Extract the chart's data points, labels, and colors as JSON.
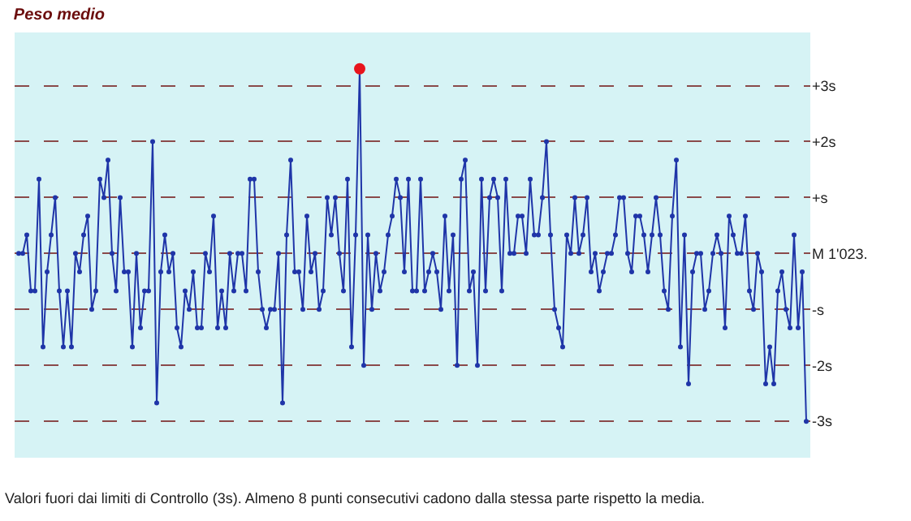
{
  "chart_data": {
    "type": "line",
    "title": "Peso medio",
    "annotations": [
      "Valori fuori dai limiti di Controllo (3s). Almeno 8 punti consecutivi cadono dalla stessa parte rispetto la media."
    ],
    "categories": [
      null,
      null,
      null,
      null,
      null,
      null,
      null,
      null,
      null,
      null,
      null,
      null,
      null,
      null,
      null,
      null,
      null,
      null,
      null,
      null,
      null,
      null,
      null,
      null,
      null,
      null,
      null,
      null,
      null,
      null,
      null,
      null,
      null,
      null,
      null,
      null,
      null,
      null,
      null,
      null,
      null,
      null,
      null,
      null,
      null,
      null,
      null,
      null,
      null,
      null,
      null,
      null,
      null,
      null,
      null,
      null,
      null,
      null,
      null,
      null,
      null,
      null,
      null,
      null,
      null,
      null,
      null,
      null,
      null,
      null,
      null,
      null,
      null,
      null,
      null,
      null,
      null,
      null,
      null,
      null,
      null,
      null,
      null,
      null,
      null,
      null,
      null,
      null,
      null,
      null,
      null,
      null,
      null,
      null,
      null,
      null,
      null,
      null,
      null,
      null,
      null,
      null,
      null,
      null,
      null,
      null,
      null,
      null,
      null,
      null,
      null,
      null,
      null,
      null,
      null,
      null,
      null,
      null,
      null,
      null,
      null,
      null,
      null,
      null,
      null,
      null,
      null,
      null,
      null,
      null,
      null,
      null,
      null,
      null,
      null,
      null,
      null,
      null,
      null,
      null,
      null,
      null,
      null,
      null,
      null,
      null,
      null,
      null,
      null,
      null,
      null,
      null,
      null,
      null,
      null,
      null,
      null,
      null,
      null,
      null,
      null,
      null,
      null,
      null,
      null,
      null,
      null,
      null,
      null,
      null,
      null,
      null,
      null,
      null,
      null,
      null,
      null,
      null,
      null,
      null,
      null,
      null,
      null,
      null,
      null,
      null,
      null,
      null,
      null,
      null,
      null,
      null,
      null,
      null,
      null
    ],
    "series": [
      {
        "color": "#1f35a8",
        "values": [
          0,
          0,
          0.33,
          -0.67,
          -0.67,
          1.33,
          -1.67,
          -0.33,
          0.33,
          1,
          -0.67,
          -1.67,
          -0.67,
          -1.67,
          0,
          -0.33,
          0.33,
          0.67,
          -1,
          -0.67,
          1.33,
          1,
          1.67,
          0,
          -0.67,
          1,
          -0.33,
          -0.33,
          -1.67,
          0,
          -1.33,
          -0.67,
          -0.67,
          2,
          -2.67,
          -0.33,
          0.33,
          -0.33,
          0,
          -1.33,
          -1.67,
          -0.67,
          -1,
          -0.33,
          -1.33,
          -1.33,
          0,
          -0.33,
          0.67,
          -1.33,
          -0.67,
          -1.33,
          0,
          -0.67,
          0,
          0,
          -0.67,
          1.33,
          1.33,
          -0.33,
          -1,
          -1.33,
          -1,
          -1,
          0,
          -2.67,
          0.33,
          1.67,
          -0.33,
          -0.33,
          -1,
          0.67,
          -0.33,
          0,
          -1,
          -0.67,
          1,
          0.33,
          1,
          0,
          -0.67,
          1.33,
          -1.67,
          0.33,
          3.3,
          -2,
          0.33,
          -1,
          0,
          -0.67,
          -0.33,
          0.33,
          0.67,
          1.33,
          1,
          -0.33,
          1.33,
          -0.67,
          -0.67,
          1.33,
          -0.67,
          -0.33,
          0,
          -0.33,
          -1,
          0.67,
          -0.67,
          0.33,
          -2,
          1.33,
          1.67,
          -0.67,
          -0.33,
          -2,
          1.33,
          -0.67,
          1,
          1.33,
          1,
          -0.67,
          1.33,
          0,
          0,
          0.67,
          0.67,
          0,
          1.33,
          0.33,
          0.33,
          1,
          2,
          0.33,
          -1,
          -1.33,
          -1.67,
          0.33,
          0,
          1,
          0,
          0.33,
          1,
          -0.33,
          0,
          -0.67,
          -0.33,
          0,
          0,
          0.33,
          1,
          1,
          0,
          -0.33,
          0.67,
          0.67,
          0.33,
          -0.33,
          0.33,
          1,
          0.33,
          -0.67,
          -1,
          0.67,
          1.67,
          -1.67,
          0.33,
          -2.33,
          -0.33,
          0,
          0,
          -1,
          -0.67,
          0,
          0.33,
          0,
          -1.33,
          0.67,
          0.33,
          0,
          0,
          0.67,
          -0.67,
          -1,
          0,
          -0.33,
          -2.33,
          -1.67,
          -2.33,
          -0.67,
          -0.33,
          -1,
          -1.33,
          0.33,
          -1.33,
          -0.33,
          -3
        ]
      },
      {
        "type": "scatter",
        "color": "#e8141c",
        "values": [
          null,
          null,
          null,
          null,
          null,
          null,
          null,
          null,
          null,
          null,
          null,
          null,
          null,
          null,
          null,
          null,
          null,
          null,
          null,
          null,
          null,
          null,
          null,
          null,
          null,
          null,
          null,
          null,
          null,
          null,
          null,
          null,
          null,
          null,
          null,
          null,
          null,
          null,
          null,
          null,
          null,
          null,
          null,
          null,
          null,
          null,
          null,
          null,
          null,
          null,
          null,
          null,
          null,
          null,
          null,
          null,
          null,
          null,
          null,
          null,
          null,
          null,
          null,
          null,
          null,
          null,
          null,
          null,
          null,
          null,
          null,
          null,
          null,
          null,
          null,
          null,
          null,
          null,
          null,
          null,
          null,
          null,
          null,
          null,
          3.3,
          null,
          null,
          null,
          null,
          null,
          null,
          null,
          null,
          null,
          null,
          null,
          null,
          null,
          null,
          null,
          null,
          null,
          null,
          null,
          null,
          null,
          null,
          null,
          null,
          null,
          null,
          null,
          null,
          null,
          null,
          null,
          null,
          null,
          null,
          null,
          null,
          null,
          null,
          null,
          null,
          null,
          null,
          null,
          null,
          null,
          null,
          null,
          null,
          null,
          null,
          null,
          null,
          null,
          null,
          null,
          null,
          null,
          null,
          null,
          null,
          null,
          null,
          null,
          null,
          null,
          null,
          null,
          null,
          null,
          null,
          null,
          null,
          null,
          null,
          null,
          null,
          null,
          null,
          null,
          null,
          null,
          null,
          null,
          null,
          null,
          null,
          null,
          null,
          null,
          null,
          null,
          null,
          null,
          null,
          null,
          null,
          null,
          null,
          null,
          null,
          null,
          null,
          null,
          null,
          null,
          null,
          null,
          null,
          null,
          null
        ]
      }
    ],
    "ylim": [
      -3.65,
      3.95
    ],
    "yticks": [
      {
        "value": 3,
        "label": "+3s"
      },
      {
        "value": 2,
        "label": "+2s"
      },
      {
        "value": 1,
        "label": "+s"
      },
      {
        "value": 0,
        "label": "M 1'023."
      },
      {
        "value": -1,
        "label": "-s"
      },
      {
        "value": -2,
        "label": "-2s"
      },
      {
        "value": -3,
        "label": "-3s"
      }
    ],
    "tick_labels": "y",
    "grid": "y",
    "marker": "circle",
    "line_style": "solid"
  }
}
